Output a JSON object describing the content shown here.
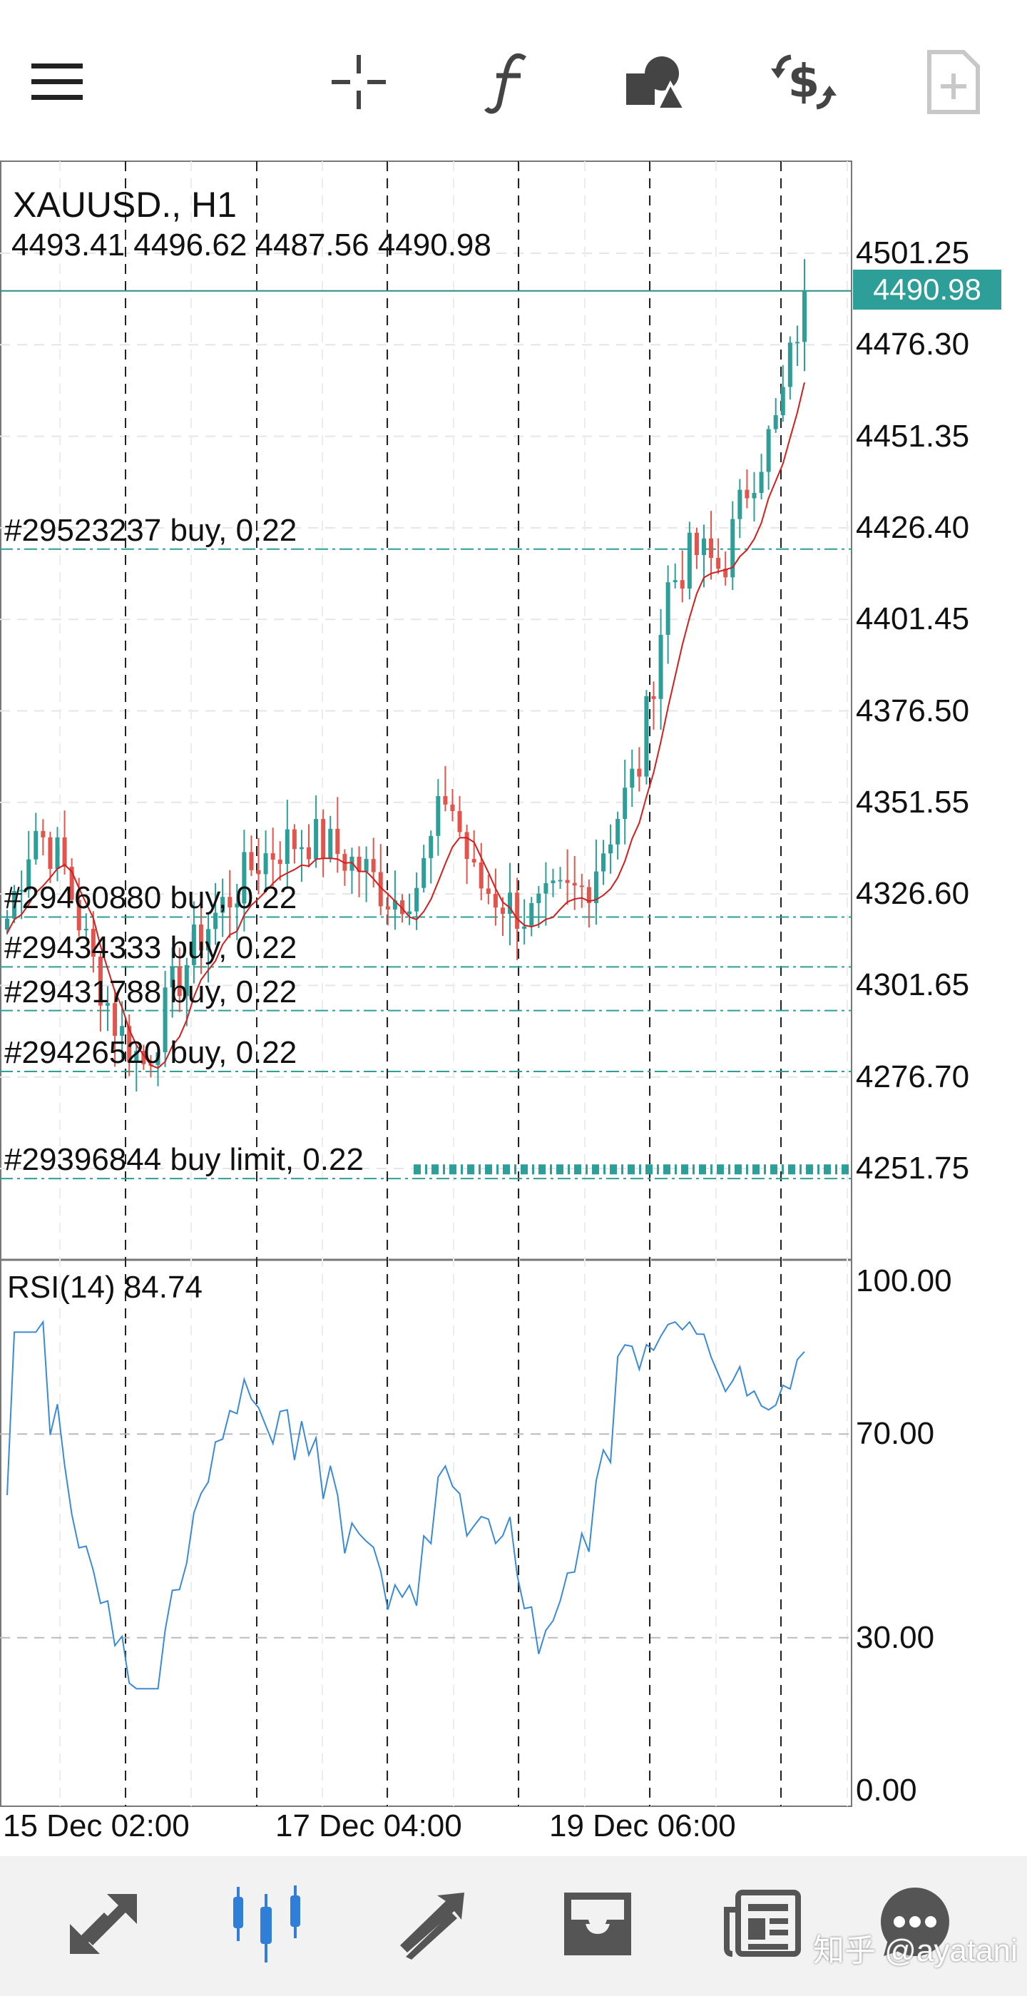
{
  "toolbar": {
    "icons": [
      "menu-icon",
      "crosshair-icon",
      "function-icon",
      "objects-icon",
      "trade-icon",
      "new-order-icon"
    ]
  },
  "chart": {
    "symbol": "XAUUSD., H1",
    "ohlc": "4493.41 4496.62 4487.56 4490.98",
    "current_price": "4490.98",
    "price_axis": [
      "4501.25",
      "4476.30",
      "4451.35",
      "4426.40",
      "4401.45",
      "4376.50",
      "4351.55",
      "4326.60",
      "4301.65",
      "4276.70",
      "4251.75"
    ],
    "orders": [
      {
        "label": "#29523237 buy, 0.22",
        "price": 4420.6
      },
      {
        "label": "#29460880 buy, 0.22",
        "price": 4320.3
      },
      {
        "label": "#29434333 buy, 0.22",
        "price": 4306.7
      },
      {
        "label": "#29431788 buy, 0.22",
        "price": 4294.8
      },
      {
        "label": "#29426520 buy, 0.22",
        "price": 4278.2
      },
      {
        "label": "#29396844 buy limit, 0.22",
        "price": 4249.0
      }
    ],
    "colors": {
      "bull": "#2e9e98",
      "bear": "#e0564f",
      "ma": "#d21e1e",
      "rsi": "#3b8ad8",
      "order_line": "#2e9e98"
    }
  },
  "rsi": {
    "label": "RSI(14) 84.74",
    "axis": [
      "100.00",
      "70.00",
      "30.00",
      "0.00"
    ]
  },
  "time_axis": [
    "15 Dec 02:00",
    "17 Dec 04:00",
    "19 Dec 06:00"
  ],
  "bottom_nav": {
    "icons": [
      "quotes-icon",
      "chart-icon",
      "trade-icon",
      "history-icon",
      "news-icon",
      "chat-icon"
    ],
    "active": "chart-icon"
  },
  "watermark": "知乎 @ayatani",
  "chart_data": {
    "type": "candlestick",
    "title": "XAUUSD., H1",
    "ylim": [
      4230,
      4510
    ],
    "x_ticks": [
      "15 Dec 02:00",
      "17 Dec 04:00",
      "19 Dec 06:00"
    ],
    "close_path": [
      4320,
      4345,
      4335,
      4310,
      4290,
      4280,
      4300,
      4315,
      4325,
      4335,
      4340,
      4342,
      4338,
      4333,
      4325,
      4330,
      4355,
      4330,
      4325,
      4320,
      4325,
      4328,
      4345,
      4362,
      4410,
      4420,
      4415,
      4440,
      4455,
      4490
    ]
  }
}
